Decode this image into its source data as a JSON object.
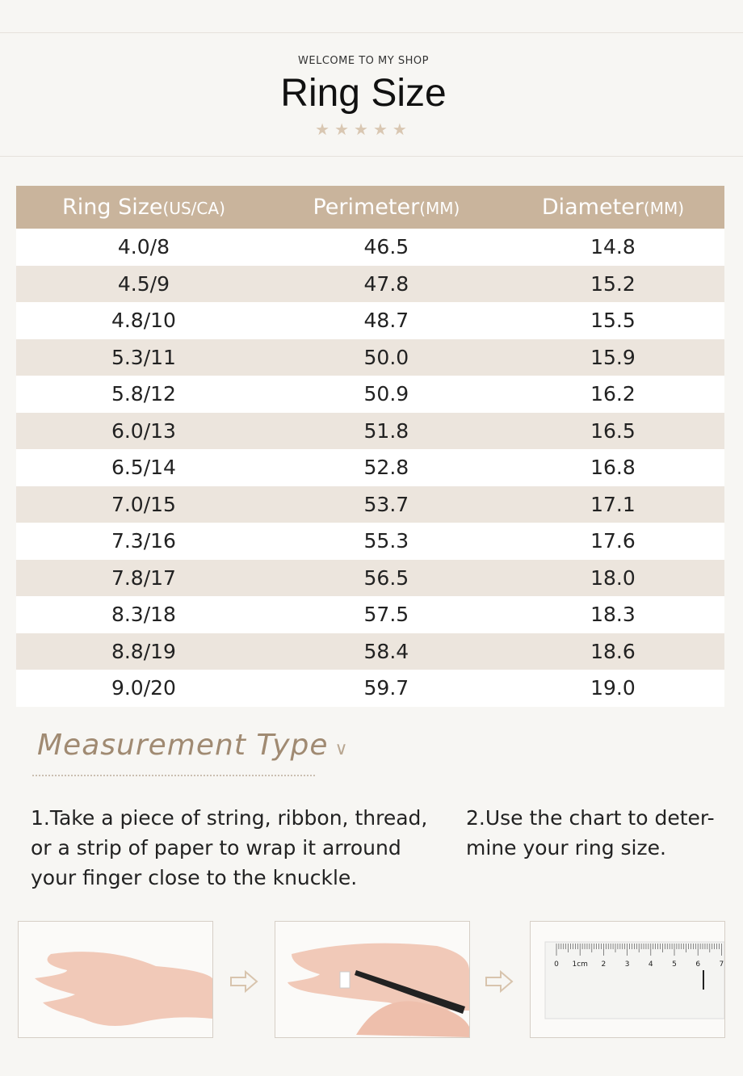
{
  "header": {
    "welcome": "WELCOME TO MY SHOP",
    "title": "Ring Size"
  },
  "table": {
    "headers": [
      [
        "Ring Size",
        "(US/CA)"
      ],
      [
        "Perimeter",
        "(MM)"
      ],
      [
        "Diameter",
        "(MM)"
      ]
    ],
    "rows": [
      [
        "4.0/8",
        "46.5",
        "14.8"
      ],
      [
        "4.5/9",
        "47.8",
        "15.2"
      ],
      [
        "4.8/10",
        "48.7",
        "15.5"
      ],
      [
        "5.3/11",
        "50.0",
        "15.9"
      ],
      [
        "5.8/12",
        "50.9",
        "16.2"
      ],
      [
        "6.0/13",
        "51.8",
        "16.5"
      ],
      [
        "6.5/14",
        "52.8",
        "16.8"
      ],
      [
        "7.0/15",
        "53.7",
        "17.1"
      ],
      [
        "7.3/16",
        "55.3",
        "17.6"
      ],
      [
        "7.8/17",
        "56.5",
        "18.0"
      ],
      [
        "8.3/18",
        "57.5",
        "18.3"
      ],
      [
        "8.8/19",
        "58.4",
        "18.6"
      ],
      [
        "9.0/20",
        "59.7",
        "19.0"
      ]
    ]
  },
  "section": {
    "title": "Measurement Type"
  },
  "steps": [
    [
      "1.Take a piece of string, ribbon, thread,",
      "or a strip of paper to wrap it arround",
      "your finger close to the knuckle."
    ],
    [
      "2.Use the chart to deter-",
      "mine your ring size."
    ]
  ],
  "ruler": {
    "labels": [
      "0",
      "1cm",
      "2",
      "3",
      "4",
      "5",
      "6",
      "7"
    ]
  }
}
